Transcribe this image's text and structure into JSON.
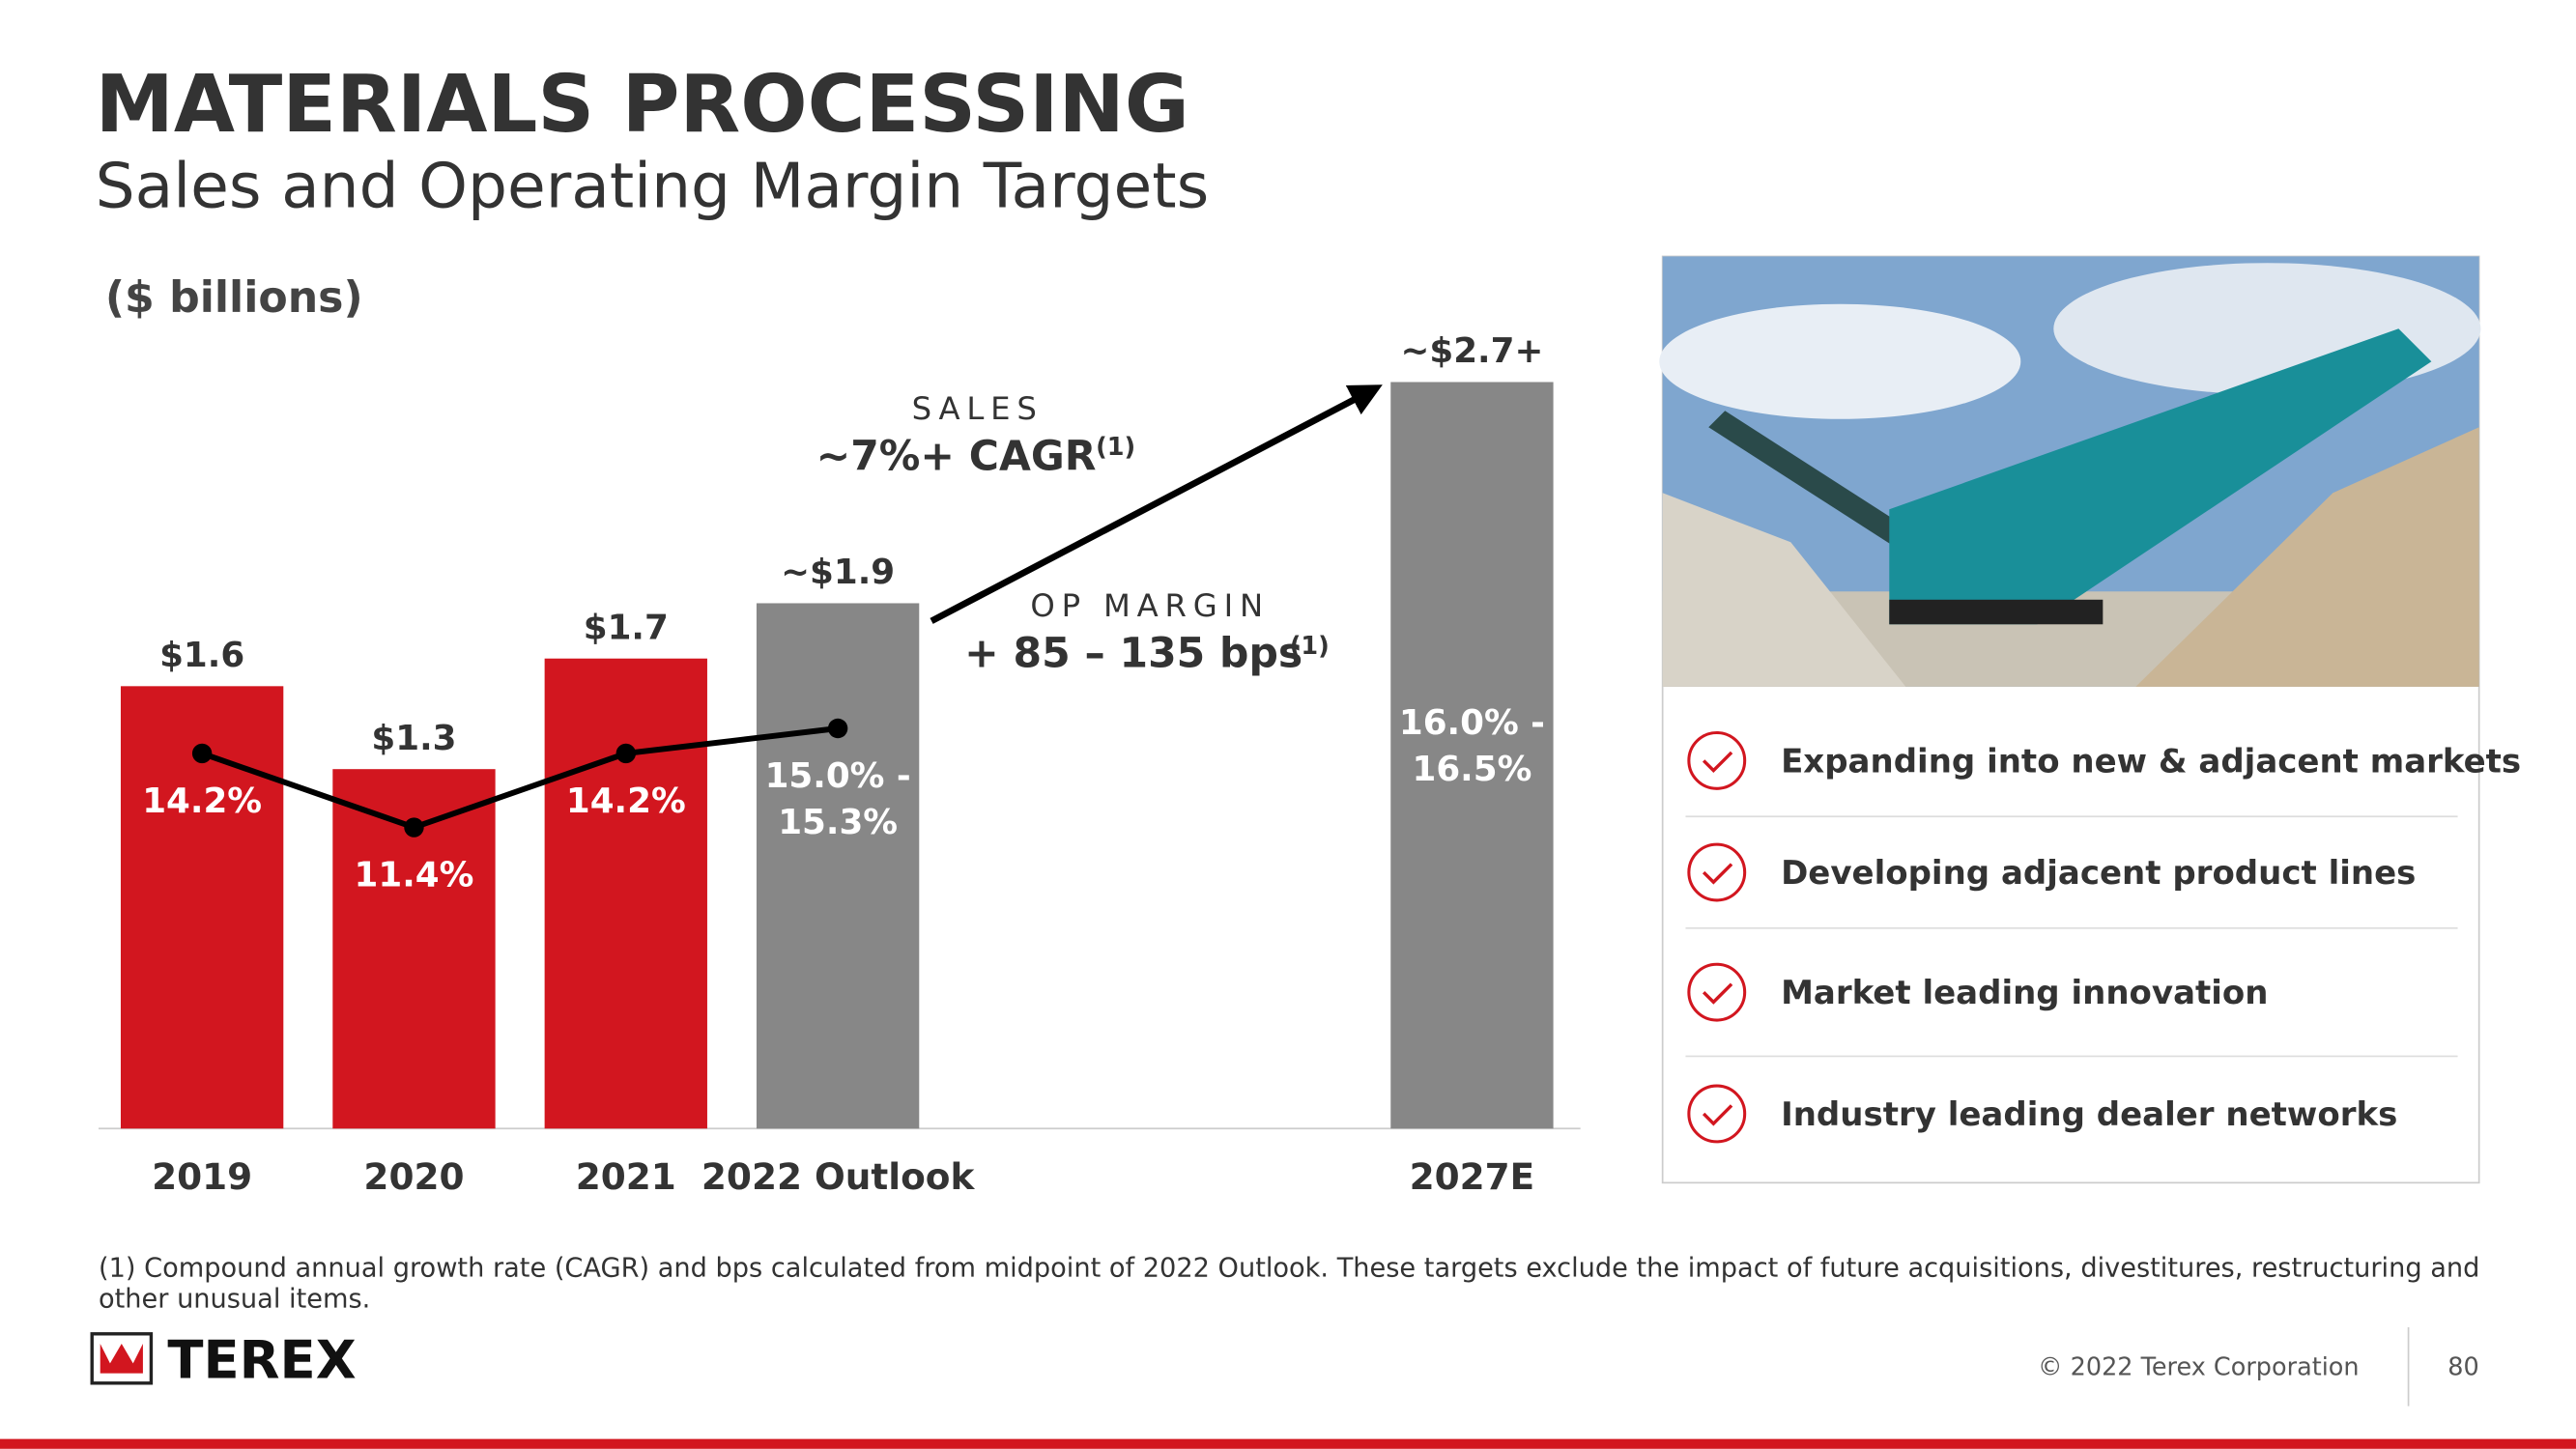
{
  "header": {
    "title": "MATERIALS PROCESSING",
    "subtitle": "Sales and Operating Margin Targets"
  },
  "chart_data": {
    "type": "bar",
    "unit_label": "($ billions)",
    "categories": [
      "2019",
      "2020",
      "2021",
      "2022 Outlook",
      "2027E"
    ],
    "values": [
      1.6,
      1.3,
      1.7,
      1.9,
      2.7
    ],
    "value_labels": [
      "$1.6",
      "$1.3",
      "$1.7",
      "~$1.9",
      "~$2.7+"
    ],
    "colors": [
      "#d2161f",
      "#d2161f",
      "#d2161f",
      "#878787",
      "#878787"
    ],
    "ylim": [
      0,
      3
    ],
    "line_series": {
      "name": "Operating margin",
      "color": "#000000",
      "axis": "y2",
      "values": [
        14.2,
        11.4,
        14.2,
        15.15,
        null
      ],
      "value_labels": [
        "14.2%",
        "11.4%",
        "14.2%",
        "15.0% - 15.3%",
        null
      ]
    },
    "y2lim": [
      0,
      31.4
    ],
    "annotations": {
      "margin_2027": "16.0% - 16.5%",
      "sales_label": "SALES",
      "sales_value": "~7%+ CAGR",
      "sales_note": "(1)",
      "margin_label": "OP MARGIN",
      "margin_value": "+ 85 – 135 bps",
      "margin_note": "(1)"
    }
  },
  "panel": {
    "items": [
      "Expanding into new & adjacent markets",
      "Developing adjacent product lines",
      "Market leading innovation",
      "Industry leading dealer networks"
    ]
  },
  "footer": {
    "note": "(1) Compound annual growth rate (CAGR) and bps calculated from midpoint of 2022 Outlook. These targets exclude the impact of future acquisitions, divestitures, restructuring and",
    "note2": "other unusual items.",
    "logo": "TEREX",
    "copyright": "© 2022 Terex Corporation",
    "page": "80"
  }
}
